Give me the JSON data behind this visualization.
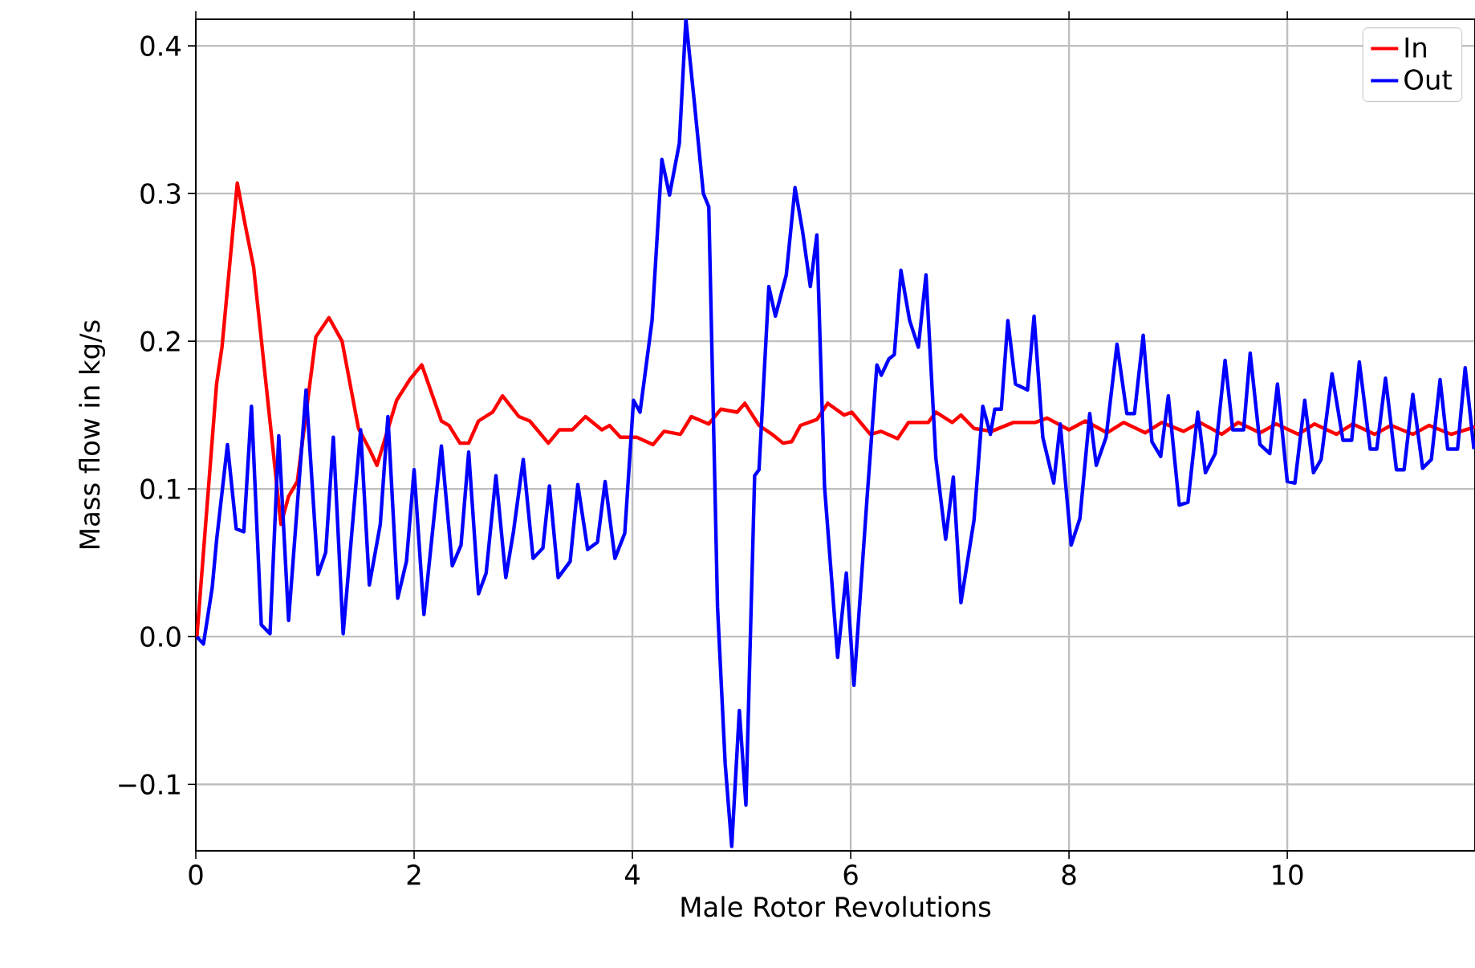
{
  "chart_data": {
    "type": "line",
    "xlabel": "Male Rotor Revolutions",
    "ylabel": "Mass flow in kg/s",
    "xlim": [
      0,
      11.72
    ],
    "ylim": [
      -0.145,
      0.418
    ],
    "xticks": [
      0,
      2,
      4,
      6,
      8,
      10
    ],
    "yticks": [
      {
        "value": -0.1,
        "label": "−0.1"
      },
      {
        "value": 0.0,
        "label": "0.0"
      },
      {
        "value": 0.1,
        "label": "0.1"
      },
      {
        "value": 0.2,
        "label": "0.2"
      },
      {
        "value": 0.3,
        "label": "0.3"
      },
      {
        "value": 0.4,
        "label": "0.4"
      }
    ],
    "grid": true,
    "legend": "top right",
    "marker": "none",
    "line_style": "solid",
    "series": [
      {
        "name": "In",
        "color": "#ff0000",
        "x": [
          0.01,
          0.19,
          0.24,
          0.38,
          0.46,
          0.53,
          0.78,
          0.85,
          0.93,
          1.1,
          1.22,
          1.34,
          1.49,
          1.59,
          1.66,
          1.84,
          1.96,
          2.07,
          2.25,
          2.32,
          2.42,
          2.5,
          2.59,
          2.72,
          2.81,
          2.96,
          3.06,
          3.23,
          3.33,
          3.45,
          3.57,
          3.72,
          3.79,
          3.89,
          4.04,
          4.19,
          4.29,
          4.44,
          4.54,
          4.7,
          4.81,
          4.96,
          5.03,
          5.16,
          5.28,
          5.38,
          5.46,
          5.54,
          5.69,
          5.79,
          5.94,
          6.01,
          6.18,
          6.28,
          6.43,
          6.53,
          6.71,
          6.78,
          6.93,
          7.01,
          7.13,
          7.29,
          7.49,
          7.69,
          7.8,
          8.0,
          8.15,
          8.35,
          8.5,
          8.7,
          8.85,
          9.05,
          9.2,
          9.4,
          9.55,
          9.75,
          9.9,
          10.1,
          10.25,
          10.45,
          10.6,
          10.8,
          10.95,
          11.15,
          11.3,
          11.5,
          11.72
        ],
        "values": [
          0.0,
          0.171,
          0.196,
          0.307,
          0.276,
          0.25,
          0.076,
          0.095,
          0.105,
          0.203,
          0.216,
          0.2,
          0.141,
          0.127,
          0.116,
          0.16,
          0.174,
          0.184,
          0.146,
          0.143,
          0.131,
          0.131,
          0.146,
          0.152,
          0.163,
          0.149,
          0.146,
          0.131,
          0.14,
          0.14,
          0.149,
          0.14,
          0.143,
          0.135,
          0.135,
          0.13,
          0.139,
          0.137,
          0.149,
          0.144,
          0.154,
          0.152,
          0.158,
          0.143,
          0.137,
          0.131,
          0.132,
          0.143,
          0.147,
          0.158,
          0.15,
          0.152,
          0.137,
          0.139,
          0.134,
          0.145,
          0.145,
          0.152,
          0.145,
          0.15,
          0.141,
          0.139,
          0.145,
          0.145,
          0.148,
          0.14,
          0.146,
          0.138,
          0.145,
          0.138,
          0.145,
          0.139,
          0.145,
          0.137,
          0.145,
          0.138,
          0.144,
          0.137,
          0.144,
          0.137,
          0.144,
          0.137,
          0.143,
          0.137,
          0.143,
          0.137,
          0.142
        ]
      },
      {
        "name": "Out",
        "color": "#0000ff",
        "x": [
          0.01,
          0.07,
          0.15,
          0.19,
          0.29,
          0.37,
          0.44,
          0.51,
          0.6,
          0.68,
          0.76,
          0.85,
          1.01,
          1.12,
          1.19,
          1.26,
          1.35,
          1.51,
          1.59,
          1.69,
          1.76,
          1.85,
          1.93,
          2.0,
          2.09,
          2.25,
          2.35,
          2.43,
          2.5,
          2.59,
          2.66,
          2.75,
          2.84,
          2.91,
          3.0,
          3.09,
          3.18,
          3.24,
          3.32,
          3.43,
          3.5,
          3.59,
          3.68,
          3.75,
          3.84,
          3.93,
          4.01,
          4.07,
          4.18,
          4.27,
          4.34,
          4.43,
          4.49,
          4.57,
          4.65,
          4.7,
          4.78,
          4.85,
          4.91,
          4.98,
          5.04,
          5.12,
          5.16,
          5.25,
          5.31,
          5.41,
          5.49,
          5.56,
          5.63,
          5.69,
          5.76,
          5.88,
          5.96,
          6.03,
          6.15,
          6.24,
          6.28,
          6.35,
          6.4,
          6.46,
          6.54,
          6.62,
          6.69,
          6.78,
          6.87,
          6.94,
          7.01,
          7.13,
          7.21,
          7.28,
          7.32,
          7.38,
          7.44,
          7.51,
          7.62,
          7.68,
          7.76,
          7.86,
          7.92,
          8.02,
          8.1,
          8.19,
          8.25,
          8.34,
          8.44,
          8.53,
          8.6,
          8.68,
          8.76,
          8.84,
          8.91,
          9.01,
          9.09,
          9.18,
          9.25,
          9.34,
          9.43,
          9.5,
          9.6,
          9.66,
          9.75,
          9.84,
          9.91,
          10.0,
          10.07,
          10.16,
          10.24,
          10.31,
          10.41,
          10.51,
          10.59,
          10.66,
          10.76,
          10.82,
          10.9,
          11.0,
          11.07,
          11.15,
          11.24,
          11.32,
          11.4,
          11.47,
          11.56,
          11.63,
          11.71
        ],
        "values": [
          0.0,
          -0.005,
          0.033,
          0.065,
          0.13,
          0.073,
          0.071,
          0.156,
          0.008,
          0.002,
          0.136,
          0.011,
          0.167,
          0.042,
          0.057,
          0.135,
          0.002,
          0.14,
          0.035,
          0.076,
          0.149,
          0.026,
          0.051,
          0.113,
          0.015,
          0.129,
          0.048,
          0.062,
          0.125,
          0.029,
          0.043,
          0.109,
          0.04,
          0.071,
          0.12,
          0.053,
          0.06,
          0.102,
          0.04,
          0.051,
          0.103,
          0.059,
          0.064,
          0.105,
          0.053,
          0.07,
          0.16,
          0.152,
          0.214,
          0.323,
          0.299,
          0.334,
          0.418,
          0.36,
          0.3,
          0.291,
          0.02,
          -0.086,
          -0.142,
          -0.05,
          -0.114,
          0.109,
          0.113,
          0.237,
          0.217,
          0.245,
          0.304,
          0.274,
          0.237,
          0.272,
          0.102,
          -0.014,
          0.043,
          -0.033,
          0.094,
          0.184,
          0.177,
          0.188,
          0.191,
          0.248,
          0.214,
          0.196,
          0.245,
          0.121,
          0.066,
          0.108,
          0.023,
          0.079,
          0.156,
          0.137,
          0.154,
          0.154,
          0.214,
          0.171,
          0.167,
          0.217,
          0.135,
          0.104,
          0.144,
          0.062,
          0.08,
          0.151,
          0.116,
          0.135,
          0.198,
          0.151,
          0.151,
          0.204,
          0.132,
          0.122,
          0.163,
          0.089,
          0.091,
          0.152,
          0.111,
          0.124,
          0.187,
          0.14,
          0.14,
          0.192,
          0.13,
          0.124,
          0.171,
          0.105,
          0.104,
          0.16,
          0.111,
          0.12,
          0.178,
          0.133,
          0.133,
          0.186,
          0.127,
          0.127,
          0.175,
          0.113,
          0.113,
          0.164,
          0.114,
          0.12,
          0.174,
          0.127,
          0.127,
          0.182,
          0.127
        ]
      }
    ]
  }
}
